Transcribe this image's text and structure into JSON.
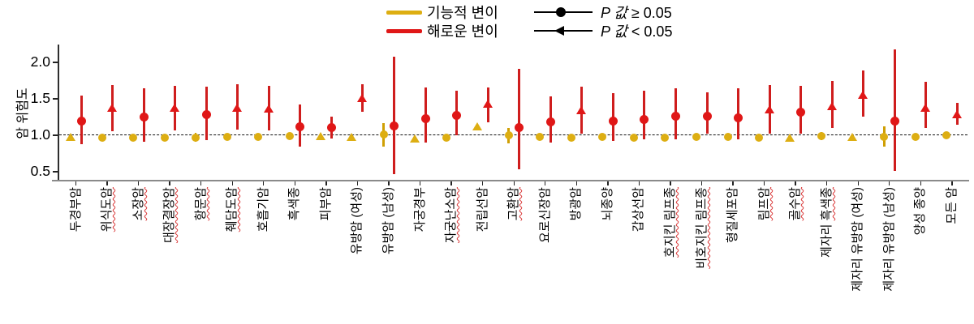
{
  "legend": {
    "functional": {
      "label": "기능적 변이",
      "color": "#ddae12"
    },
    "deleterious": {
      "label": "해로운 변이",
      "color": "#e01717"
    },
    "p_ge": {
      "italic": "P 값",
      "rest": " ≥ 0.05",
      "marker": "circle"
    },
    "p_lt": {
      "italic": "P 값",
      "rest": " < 0.05",
      "marker": "left-triangle"
    }
  },
  "chart_data": {
    "type": "scatter",
    "subtype": "forest-errorbar",
    "title": "",
    "xlabel": "",
    "ylabel": "암 위험도",
    "yticks": [
      0.5,
      1.0,
      1.5,
      2.0
    ],
    "ylim": [
      0.38,
      2.28
    ],
    "reference_line": 1.0,
    "grid": false,
    "legend_position": "top-center",
    "marker_semantics": {
      "circle": "P 값 ≥ 0.05",
      "triangle": "P 값 < 0.05"
    },
    "series_names": [
      "기능적 변이",
      "해로운 변이"
    ],
    "series_colors": {
      "functional": "#ddae12",
      "deleterious": "#e01717"
    },
    "categories": [
      {
        "label": "두경부암",
        "u": "",
        "functional": {
          "v": 0.97,
          "lo": 0.94,
          "hi": 1.0,
          "sig": true
        },
        "deleterious": {
          "v": 1.19,
          "lo": 0.88,
          "hi": 1.54,
          "sig": false
        }
      },
      {
        "label": "위식도암",
        "u": "full",
        "functional": {
          "v": 0.97,
          "lo": 0.93,
          "hi": 1.01,
          "sig": false
        },
        "deleterious": {
          "v": 1.37,
          "lo": 1.06,
          "hi": 1.69,
          "sig": true
        }
      },
      {
        "label": "소장암",
        "u": "full",
        "functional": {
          "v": 0.97,
          "lo": 0.93,
          "hi": 1.01,
          "sig": false
        },
        "deleterious": {
          "v": 1.25,
          "lo": 0.91,
          "hi": 1.65,
          "sig": false
        }
      },
      {
        "label": "대장결장암",
        "u": "full",
        "functional": {
          "v": 0.97,
          "lo": 0.94,
          "hi": 1.0,
          "sig": false
        },
        "deleterious": {
          "v": 1.37,
          "lo": 1.07,
          "hi": 1.68,
          "sig": true
        }
      },
      {
        "label": "항문암",
        "u": "full",
        "functional": {
          "v": 0.97,
          "lo": 0.91,
          "hi": 1.03,
          "sig": false
        },
        "deleterious": {
          "v": 1.28,
          "lo": 0.93,
          "hi": 1.67,
          "sig": false
        }
      },
      {
        "label": "췌담도암",
        "u": "full",
        "functional": {
          "v": 0.98,
          "lo": 0.94,
          "hi": 1.02,
          "sig": false
        },
        "deleterious": {
          "v": 1.37,
          "lo": 1.08,
          "hi": 1.7,
          "sig": true
        }
      },
      {
        "label": "호흡기암",
        "u": "",
        "functional": {
          "v": 0.98,
          "lo": 0.95,
          "hi": 1.01,
          "sig": false
        },
        "deleterious": {
          "v": 1.36,
          "lo": 1.07,
          "hi": 1.68,
          "sig": true
        }
      },
      {
        "label": "흑색종",
        "u": "",
        "functional": {
          "v": 0.99,
          "lo": 0.95,
          "hi": 1.03,
          "sig": false
        },
        "deleterious": {
          "v": 1.12,
          "lo": 0.84,
          "hi": 1.42,
          "sig": false
        }
      },
      {
        "label": "피부암",
        "u": "",
        "functional": {
          "v": 0.98,
          "lo": 0.95,
          "hi": 1.01,
          "sig": true
        },
        "deleterious": {
          "v": 1.11,
          "lo": 0.95,
          "hi": 1.26,
          "sig": false
        }
      },
      {
        "label": "유방암 (여성)",
        "u": "",
        "functional": {
          "v": 0.97,
          "lo": 0.94,
          "hi": 1.0,
          "sig": true
        },
        "deleterious": {
          "v": 1.5,
          "lo": 1.32,
          "hi": 1.7,
          "sig": true
        }
      },
      {
        "label": "유방암 (남성)",
        "u": "",
        "functional": {
          "v": 1.01,
          "lo": 0.84,
          "hi": 1.17,
          "sig": false
        },
        "deleterious": {
          "v": 1.13,
          "lo": 0.47,
          "hi": 2.08,
          "sig": false
        }
      },
      {
        "label": "자궁경부",
        "u": "",
        "functional": {
          "v": 0.95,
          "lo": 0.92,
          "hi": 0.98,
          "sig": true
        },
        "deleterious": {
          "v": 1.23,
          "lo": 0.9,
          "hi": 1.66,
          "sig": false
        }
      },
      {
        "label": "자궁난소암",
        "u": "full",
        "functional": {
          "v": 0.97,
          "lo": 0.93,
          "hi": 1.01,
          "sig": false
        },
        "deleterious": {
          "v": 1.27,
          "lo": 1.0,
          "hi": 1.61,
          "sig": false
        }
      },
      {
        "label": "전립선암",
        "u": "",
        "functional": {
          "v": 1.11,
          "lo": 1.07,
          "hi": 1.15,
          "sig": true
        },
        "deleterious": {
          "v": 1.42,
          "lo": 1.18,
          "hi": 1.66,
          "sig": true
        }
      },
      {
        "label": "고환암",
        "u": "full",
        "functional": {
          "v": 1.0,
          "lo": 0.89,
          "hi": 1.1,
          "sig": false
        },
        "deleterious": {
          "v": 1.11,
          "lo": 0.53,
          "hi": 1.91,
          "sig": false
        }
      },
      {
        "label": "요로신장암",
        "u": "",
        "functional": {
          "v": 0.98,
          "lo": 0.94,
          "hi": 1.02,
          "sig": false
        },
        "deleterious": {
          "v": 1.18,
          "lo": 0.9,
          "hi": 1.53,
          "sig": false
        }
      },
      {
        "label": "방광암",
        "u": "",
        "functional": {
          "v": 0.97,
          "lo": 0.93,
          "hi": 1.01,
          "sig": false
        },
        "deleterious": {
          "v": 1.33,
          "lo": 1.02,
          "hi": 1.67,
          "sig": true
        }
      },
      {
        "label": "뇌종양",
        "u": "",
        "functional": {
          "v": 0.98,
          "lo": 0.94,
          "hi": 1.02,
          "sig": false
        },
        "deleterious": {
          "v": 1.2,
          "lo": 0.92,
          "hi": 1.58,
          "sig": false
        }
      },
      {
        "label": "갑상선암",
        "u": "",
        "functional": {
          "v": 0.97,
          "lo": 0.93,
          "hi": 1.01,
          "sig": false
        },
        "deleterious": {
          "v": 1.22,
          "lo": 0.94,
          "hi": 1.61,
          "sig": false
        }
      },
      {
        "label": "호지킨 림프종",
        "u": "full",
        "functional": {
          "v": 0.97,
          "lo": 0.93,
          "hi": 1.01,
          "sig": false
        },
        "deleterious": {
          "v": 1.26,
          "lo": 0.94,
          "hi": 1.65,
          "sig": false
        }
      },
      {
        "label": "비호지킨 림프종",
        "u": "full",
        "functional": {
          "v": 0.98,
          "lo": 0.94,
          "hi": 1.02,
          "sig": false
        },
        "deleterious": {
          "v": 1.26,
          "lo": 1.02,
          "hi": 1.59,
          "sig": false
        }
      },
      {
        "label": "형질세포암",
        "u": "",
        "functional": {
          "v": 0.98,
          "lo": 0.94,
          "hi": 1.02,
          "sig": false
        },
        "deleterious": {
          "v": 1.24,
          "lo": 0.94,
          "hi": 1.64,
          "sig": false
        }
      },
      {
        "label": "림프암",
        "u": "full",
        "functional": {
          "v": 0.97,
          "lo": 0.93,
          "hi": 1.01,
          "sig": false
        },
        "deleterious": {
          "v": 1.34,
          "lo": 1.02,
          "hi": 1.69,
          "sig": true
        }
      },
      {
        "label": "골수암",
        "u": "full",
        "functional": {
          "v": 0.96,
          "lo": 0.93,
          "hi": 0.99,
          "sig": true
        },
        "deleterious": {
          "v": 1.32,
          "lo": 1.02,
          "hi": 1.68,
          "sig": false
        }
      },
      {
        "label": "제자리 흑색종",
        "u": "흑색종",
        "functional": {
          "v": 0.99,
          "lo": 0.93,
          "hi": 1.05,
          "sig": false
        },
        "deleterious": {
          "v": 1.39,
          "lo": 1.1,
          "hi": 1.74,
          "sig": true
        }
      },
      {
        "label": "제자리 유방암 (여성)",
        "u": "",
        "functional": {
          "v": 0.97,
          "lo": 0.94,
          "hi": 1.0,
          "sig": true
        },
        "deleterious": {
          "v": 1.55,
          "lo": 1.25,
          "hi": 1.89,
          "sig": true
        }
      },
      {
        "label": "제자리 유방암 (남성)",
        "u": "",
        "functional": {
          "v": 0.98,
          "lo": 0.84,
          "hi": 1.12,
          "sig": false
        },
        "deleterious": {
          "v": 1.19,
          "lo": 0.51,
          "hi": 2.18,
          "sig": false
        }
      },
      {
        "label": "양성 종양",
        "u": "",
        "functional": {
          "v": 0.98,
          "lo": 0.94,
          "hi": 1.02,
          "sig": false
        },
        "deleterious": {
          "v": 1.37,
          "lo": 1.1,
          "hi": 1.73,
          "sig": true
        }
      },
      {
        "label": "모든 암",
        "u": "",
        "functional": {
          "v": 1.0,
          "lo": 0.97,
          "hi": 1.03,
          "sig": false
        },
        "deleterious": {
          "v": 1.28,
          "lo": 1.15,
          "hi": 1.45,
          "sig": true
        }
      }
    ]
  }
}
